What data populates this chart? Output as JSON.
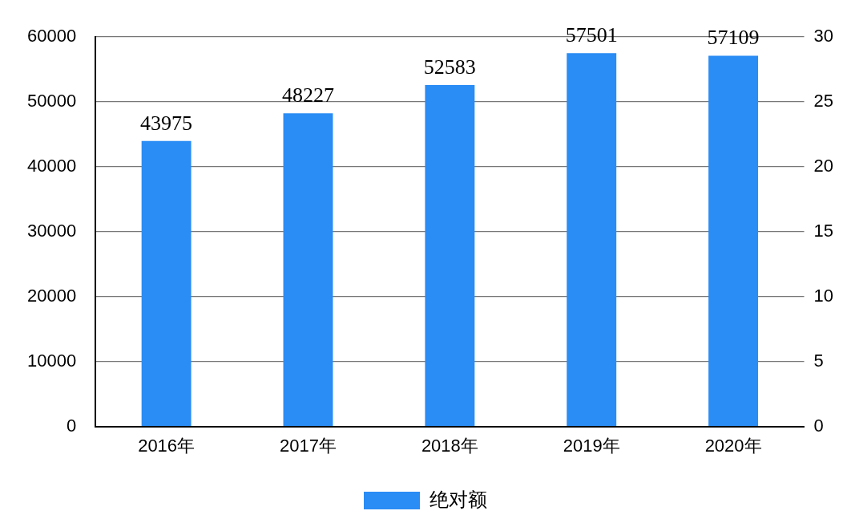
{
  "chart_data": {
    "type": "bar",
    "categories": [
      "2016年",
      "2017年",
      "2018年",
      "2019年",
      "2020年"
    ],
    "series": [
      {
        "name": "绝对额",
        "color": "#2a8cf5",
        "values": [
          43975,
          48227,
          52583,
          57501,
          57109
        ]
      }
    ],
    "ylim": [
      0,
      60000
    ],
    "yticks": [
      0,
      10000,
      20000,
      30000,
      40000,
      50000,
      60000
    ],
    "y2lim": [
      0,
      30
    ],
    "y2ticks": [
      0,
      5,
      10,
      15,
      20,
      25,
      30
    ],
    "grid": "y",
    "legend": "bottom",
    "data_labels": true
  }
}
